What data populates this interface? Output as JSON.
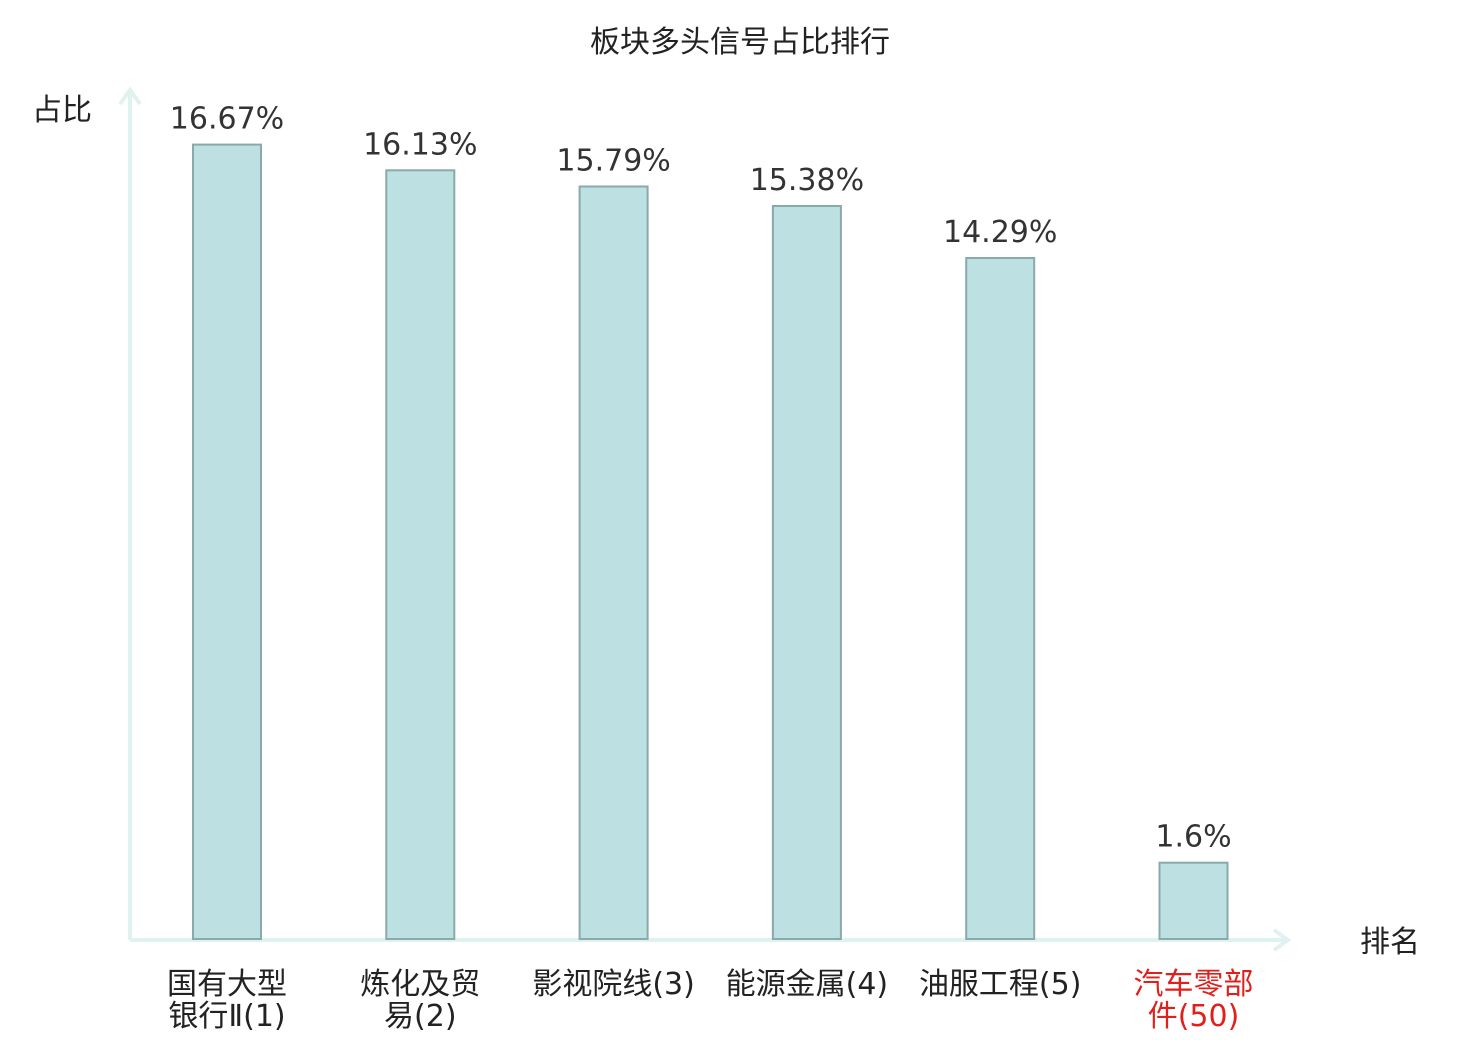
{
  "chart_data": {
    "type": "bar",
    "title": "板块多头信号占比排行",
    "ylabel": "占比",
    "xlabel": "排名",
    "ylim": [
      0,
      17.5
    ],
    "grid": false,
    "categories": [
      {
        "lines": [
          "国有大型",
          "银行Ⅱ(1)"
        ],
        "highlight": false
      },
      {
        "lines": [
          "炼化及贸",
          "易(2)"
        ],
        "highlight": false
      },
      {
        "lines": [
          "影视院线(3)"
        ],
        "highlight": false
      },
      {
        "lines": [
          "能源金属(4)"
        ],
        "highlight": false
      },
      {
        "lines": [
          "油服工程(5)"
        ],
        "highlight": false
      },
      {
        "lines": [
          "汽车零部",
          "件(50)"
        ],
        "highlight": true
      }
    ],
    "values": [
      16.67,
      16.13,
      15.79,
      15.38,
      14.29,
      1.6
    ],
    "value_labels": [
      "16.67%",
      "16.13%",
      "15.79%",
      "15.38%",
      "14.29%",
      "1.6%"
    ],
    "colors": {
      "bar": "#bde0e3",
      "bar_edge": "#8aa9aa",
      "axis": "#e0f2ef",
      "highlight_text": "#e0201b"
    }
  }
}
